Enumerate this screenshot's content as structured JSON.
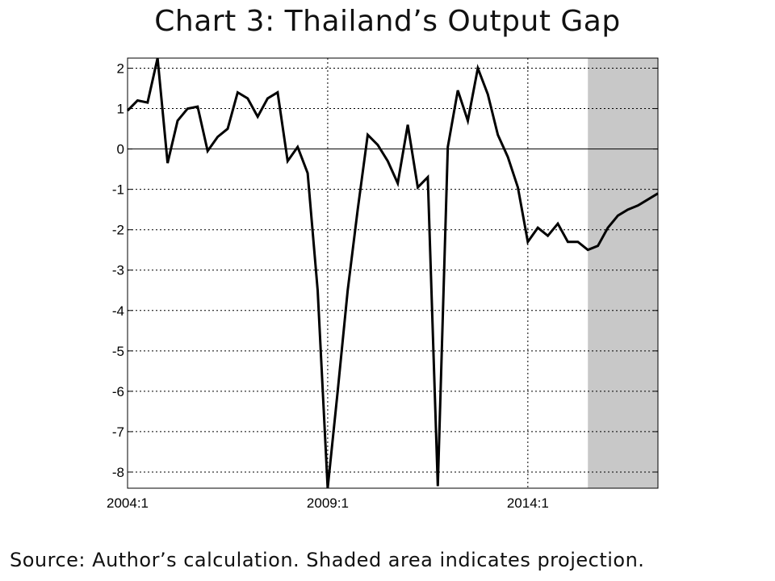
{
  "title": "Chart 3: Thailand’s Output Gap",
  "source_note": "Source: Author’s calculation. Shaded area indicates projection.",
  "colors": {
    "line": "#000000",
    "shade": "#c8c8c8",
    "grid": "#000000",
    "background": "#ffffff"
  },
  "chart_data": {
    "type": "line",
    "title": "Chart 3: Thailand’s Output Gap",
    "xlabel": "",
    "ylabel": "",
    "x_start": "2004:1",
    "frequency": "quarterly",
    "x_ticks": [
      "2004:1",
      "2009:1",
      "2014:1"
    ],
    "y_ticks": [
      2,
      1,
      0,
      -1,
      -2,
      -3,
      -4,
      -5,
      -6,
      -7,
      -8
    ],
    "ylim": [
      -8.4,
      2.25
    ],
    "xlim": [
      "2004:1",
      "2017:2"
    ],
    "grid": "dotted",
    "shaded_projection": {
      "from": "2015:3",
      "to": "2017:2"
    },
    "series": [
      {
        "values": [
          0.95,
          1.2,
          1.15,
          2.25,
          -0.35,
          0.7,
          1.0,
          1.05,
          -0.05,
          0.3,
          0.5,
          1.4,
          1.25,
          0.8,
          1.25,
          1.4,
          -0.3,
          0.05,
          -0.6,
          -3.5,
          -8.4,
          -6.0,
          -3.5,
          -1.5,
          0.35,
          0.1,
          -0.3,
          -0.85,
          0.6,
          -0.95,
          -0.7,
          -8.35,
          0.05,
          1.45,
          0.7,
          2.0,
          1.35,
          0.35,
          -0.2,
          -0.95,
          -2.3,
          -1.95,
          -2.15,
          -1.85,
          -2.3,
          -2.3,
          -2.5,
          -2.4,
          -1.95,
          -1.65,
          -1.5,
          -1.4,
          -1.25,
          -1.1
        ]
      }
    ]
  }
}
